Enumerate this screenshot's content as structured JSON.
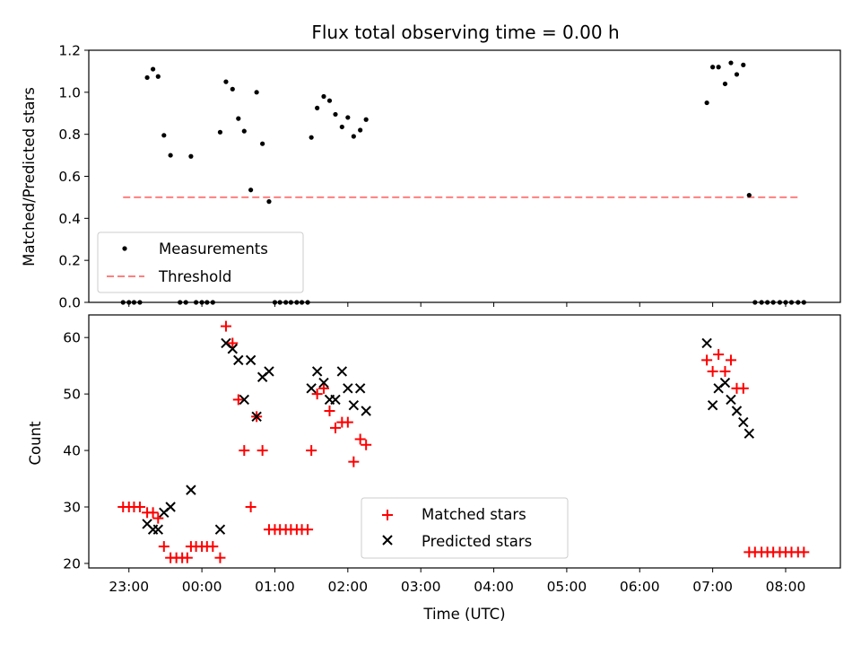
{
  "chart_data": [
    {
      "type": "scatter",
      "title": "Flux total observing time = 0.00 h",
      "ylabel": "Matched/Predicted stars",
      "xlabel": "",
      "x_unit": "hours UTC (23:00 = 23.0, 01:00 = 25.0)",
      "xlim": [
        22.45,
        32.75
      ],
      "ylim": [
        0,
        1.2
      ],
      "yticks": [
        "0.0",
        "0.2",
        "0.4",
        "0.6",
        "0.8",
        "1.0",
        "1.2"
      ],
      "legend": {
        "position": "lower-left",
        "entries": [
          "Measurements",
          "Threshold"
        ]
      },
      "series": [
        {
          "name": "Measurements",
          "color": "#000000",
          "marker": "dot",
          "points": [
            [
              22.92,
              0
            ],
            [
              23.0,
              0
            ],
            [
              23.07,
              0
            ],
            [
              23.15,
              0
            ],
            [
              23.25,
              1.07
            ],
            [
              23.33,
              1.11
            ],
            [
              23.4,
              1.075
            ],
            [
              23.48,
              0.795
            ],
            [
              23.57,
              0.7
            ],
            [
              23.7,
              0
            ],
            [
              23.78,
              0
            ],
            [
              23.85,
              0.695
            ],
            [
              23.92,
              0
            ],
            [
              24.0,
              0
            ],
            [
              24.07,
              0
            ],
            [
              24.15,
              0
            ],
            [
              24.25,
              0.81
            ],
            [
              24.33,
              1.05
            ],
            [
              24.42,
              1.015
            ],
            [
              24.5,
              0.875
            ],
            [
              24.58,
              0.815
            ],
            [
              24.67,
              0.535
            ],
            [
              24.75,
              1.0
            ],
            [
              24.83,
              0.755
            ],
            [
              24.92,
              0.48
            ],
            [
              25.0,
              0
            ],
            [
              25.07,
              0
            ],
            [
              25.15,
              0
            ],
            [
              25.22,
              0
            ],
            [
              25.3,
              0
            ],
            [
              25.37,
              0
            ],
            [
              25.45,
              0
            ],
            [
              25.5,
              0.785
            ],
            [
              25.58,
              0.925
            ],
            [
              25.67,
              0.98
            ],
            [
              25.75,
              0.96
            ],
            [
              25.83,
              0.895
            ],
            [
              25.92,
              0.835
            ],
            [
              26.0,
              0.88
            ],
            [
              26.08,
              0.79
            ],
            [
              26.17,
              0.82
            ],
            [
              26.25,
              0.87
            ],
            [
              30.92,
              0.95
            ],
            [
              31.0,
              1.12
            ],
            [
              31.08,
              1.12
            ],
            [
              31.17,
              1.04
            ],
            [
              31.25,
              1.14
            ],
            [
              31.33,
              1.085
            ],
            [
              31.42,
              1.13
            ],
            [
              31.5,
              0.51
            ],
            [
              31.58,
              0
            ],
            [
              31.67,
              0
            ],
            [
              31.75,
              0
            ],
            [
              31.83,
              0
            ],
            [
              31.92,
              0
            ],
            [
              32.0,
              0
            ],
            [
              32.08,
              0
            ],
            [
              32.17,
              0
            ],
            [
              32.25,
              0
            ]
          ]
        },
        {
          "name": "Threshold",
          "color": "#ff7f7f",
          "style": "dashed",
          "x": [
            22.92,
            32.2
          ],
          "y": [
            0.5,
            0.5
          ]
        }
      ]
    },
    {
      "type": "scatter",
      "title": "",
      "ylabel": "Count",
      "xlabel": "Time (UTC)",
      "x_unit": "hours UTC (23:00 = 23.0, 01:00 = 25.0)",
      "xlim": [
        22.45,
        32.75
      ],
      "ylim": [
        19.2,
        64
      ],
      "xticks": [
        {
          "v": 23,
          "l": "23:00"
        },
        {
          "v": 24,
          "l": "00:00"
        },
        {
          "v": 25,
          "l": "01:00"
        },
        {
          "v": 26,
          "l": "02:00"
        },
        {
          "v": 27,
          "l": "03:00"
        },
        {
          "v": 28,
          "l": "04:00"
        },
        {
          "v": 29,
          "l": "05:00"
        },
        {
          "v": 30,
          "l": "06:00"
        },
        {
          "v": 31,
          "l": "07:00"
        },
        {
          "v": 32,
          "l": "08:00"
        }
      ],
      "yticks": [
        "20",
        "30",
        "40",
        "50",
        "60"
      ],
      "legend": {
        "position": "lower-center",
        "entries": [
          "Matched stars",
          "Predicted stars"
        ]
      },
      "series": [
        {
          "name": "Matched stars",
          "color": "#ff0000",
          "marker": "plus",
          "points": [
            [
              22.92,
              30
            ],
            [
              23.0,
              30
            ],
            [
              23.07,
              30
            ],
            [
              23.15,
              30
            ],
            [
              23.25,
              29
            ],
            [
              23.33,
              29
            ],
            [
              23.4,
              28
            ],
            [
              23.48,
              23
            ],
            [
              23.57,
              21
            ],
            [
              23.65,
              21
            ],
            [
              23.73,
              21
            ],
            [
              23.8,
              21
            ],
            [
              23.85,
              23
            ],
            [
              23.92,
              23
            ],
            [
              24.0,
              23
            ],
            [
              24.07,
              23
            ],
            [
              24.15,
              23
            ],
            [
              24.25,
              21
            ],
            [
              24.33,
              62
            ],
            [
              24.42,
              59
            ],
            [
              24.5,
              49
            ],
            [
              24.58,
              40
            ],
            [
              24.67,
              30
            ],
            [
              24.75,
              46
            ],
            [
              24.83,
              40
            ],
            [
              24.92,
              26
            ],
            [
              25.0,
              26
            ],
            [
              25.07,
              26
            ],
            [
              25.15,
              26
            ],
            [
              25.22,
              26
            ],
            [
              25.3,
              26
            ],
            [
              25.37,
              26
            ],
            [
              25.45,
              26
            ],
            [
              25.5,
              40
            ],
            [
              25.58,
              50
            ],
            [
              25.67,
              51
            ],
            [
              25.75,
              47
            ],
            [
              25.83,
              44
            ],
            [
              25.92,
              45
            ],
            [
              26.0,
              45
            ],
            [
              26.08,
              38
            ],
            [
              26.17,
              42
            ],
            [
              26.25,
              41
            ],
            [
              30.92,
              56
            ],
            [
              31.0,
              54
            ],
            [
              31.08,
              57
            ],
            [
              31.17,
              54
            ],
            [
              31.25,
              56
            ],
            [
              31.33,
              51
            ],
            [
              31.42,
              51
            ],
            [
              31.5,
              22
            ],
            [
              31.58,
              22
            ],
            [
              31.67,
              22
            ],
            [
              31.75,
              22
            ],
            [
              31.83,
              22
            ],
            [
              31.92,
              22
            ],
            [
              32.0,
              22
            ],
            [
              32.08,
              22
            ],
            [
              32.17,
              22
            ],
            [
              32.25,
              22
            ]
          ]
        },
        {
          "name": "Predicted stars",
          "color": "#000000",
          "marker": "x",
          "points": [
            [
              23.25,
              27
            ],
            [
              23.33,
              26
            ],
            [
              23.4,
              26
            ],
            [
              23.48,
              29
            ],
            [
              23.57,
              30
            ],
            [
              23.85,
              33
            ],
            [
              24.25,
              26
            ],
            [
              24.33,
              59
            ],
            [
              24.42,
              58
            ],
            [
              24.5,
              56
            ],
            [
              24.58,
              49
            ],
            [
              24.67,
              56
            ],
            [
              24.75,
              46
            ],
            [
              24.83,
              53
            ],
            [
              24.92,
              54
            ],
            [
              25.5,
              51
            ],
            [
              25.58,
              54
            ],
            [
              25.67,
              52
            ],
            [
              25.75,
              49
            ],
            [
              25.83,
              49
            ],
            [
              25.92,
              54
            ],
            [
              26.0,
              51
            ],
            [
              26.08,
              48
            ],
            [
              26.17,
              51
            ],
            [
              26.25,
              47
            ],
            [
              30.92,
              59
            ],
            [
              31.0,
              48
            ],
            [
              31.08,
              51
            ],
            [
              31.17,
              52
            ],
            [
              31.25,
              49
            ],
            [
              31.33,
              47
            ],
            [
              31.42,
              45
            ],
            [
              31.5,
              43
            ]
          ]
        }
      ]
    }
  ]
}
